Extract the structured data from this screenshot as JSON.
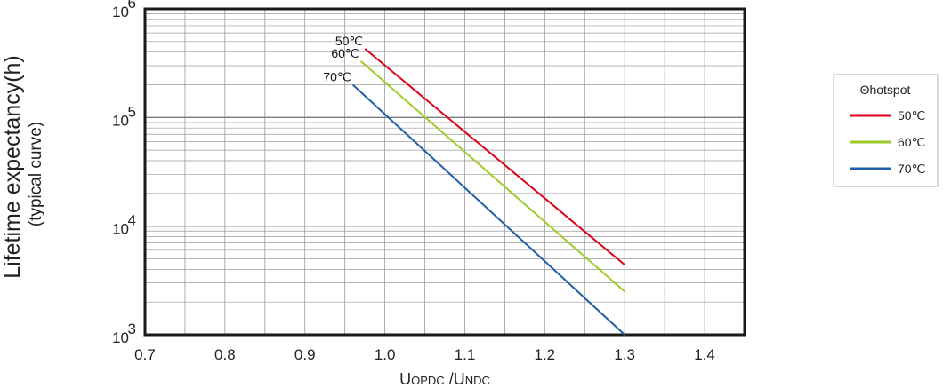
{
  "chart_data": {
    "type": "line",
    "ylabel": "Lifetime expectancy(h)",
    "ylabel_sub": "(typical curve)",
    "xlabel_main": "U",
    "xlabel_sub1": "OPDC",
    "xlabel_sep": " /U",
    "xlabel_sub2": "NDC",
    "xlim": [
      0.7,
      1.45
    ],
    "ylim": [
      1000,
      1000000
    ],
    "yscale": "log",
    "grid": true,
    "x_ticks": [
      "0.7",
      "0.8",
      "0.9",
      "1.0",
      "1.1",
      "1.2",
      "1.3",
      "1.4"
    ],
    "y_ticks": [
      {
        "base": "10",
        "exp": "3"
      },
      {
        "base": "10",
        "exp": "4"
      },
      {
        "base": "10",
        "exp": "5"
      },
      {
        "base": "10",
        "exp": "6"
      }
    ],
    "legend": {
      "title": "Θhotspot",
      "position": "right"
    },
    "series": [
      {
        "name": "50℃",
        "color": "#e0001a",
        "x": [
          0.975,
          1.3
        ],
        "y": [
          430000,
          4400
        ]
      },
      {
        "name": "60℃",
        "color": "#9ccc2a",
        "x": [
          0.97,
          1.3
        ],
        "y": [
          330000,
          2500
        ]
      },
      {
        "name": "70℃",
        "color": "#1f5fa8",
        "x": [
          0.96,
          1.3
        ],
        "y": [
          200000,
          1000
        ]
      }
    ]
  }
}
